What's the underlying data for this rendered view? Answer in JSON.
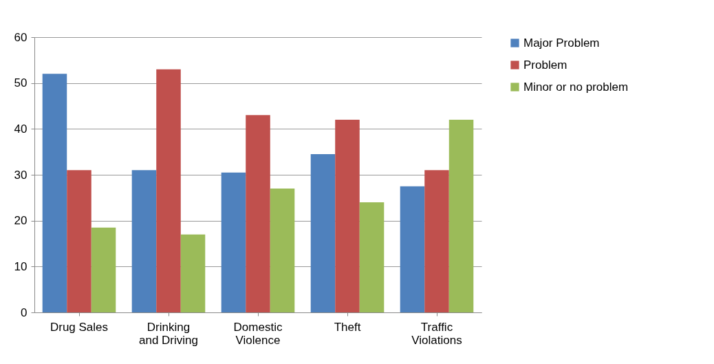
{
  "chart_data": {
    "type": "bar",
    "categories": [
      "Drug Sales",
      "Drinking and Driving",
      "Domestic Violence",
      "Theft",
      "Traffic Violations"
    ],
    "series": [
      {
        "name": "Major Problem",
        "color": "#4f81bd",
        "values": [
          52,
          31,
          30.5,
          34.5,
          27.5
        ]
      },
      {
        "name": "Problem",
        "color": "#c0504d",
        "values": [
          31,
          53,
          43,
          42,
          31
        ]
      },
      {
        "name": "Minor or no problem",
        "color": "#9bbb59",
        "values": [
          18.5,
          17,
          27,
          24,
          42
        ]
      }
    ],
    "ylim": [
      0,
      60
    ],
    "yticks": [
      0,
      10,
      20,
      30,
      40,
      50,
      60
    ],
    "grid": "y",
    "legend": "right"
  }
}
